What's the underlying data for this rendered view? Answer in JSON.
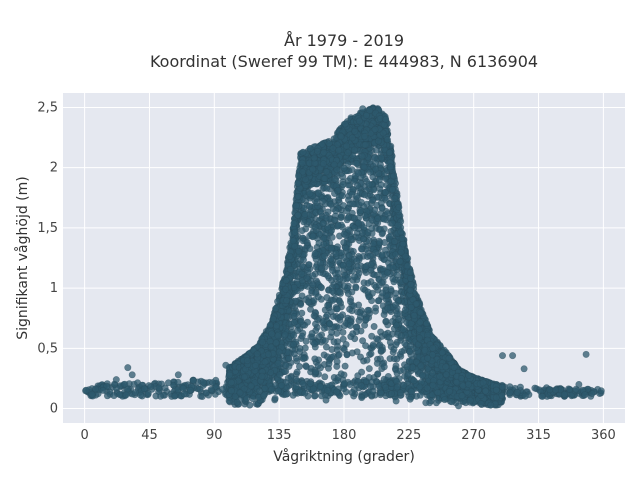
{
  "chart_data": {
    "type": "scatter",
    "title": "År 1979 - 2019",
    "subtitle": "Koordinat (Sweref 99 TM): E 444983, N 6136904",
    "xlabel": "Vågriktning (grader)",
    "ylabel": "Signifikant våghöjd (m)",
    "xlim": [
      -15,
      375
    ],
    "ylim": [
      -0.12,
      2.62
    ],
    "x_ticks": [
      0,
      45,
      90,
      135,
      180,
      225,
      270,
      315,
      360
    ],
    "x_tick_labels": [
      "0",
      "45",
      "90",
      "135",
      "180",
      "225",
      "270",
      "315",
      "360"
    ],
    "y_ticks": [
      0,
      0.5,
      1,
      1.5,
      2,
      2.5
    ],
    "y_tick_labels": [
      "0",
      "0,5",
      "1",
      "1,5",
      "2",
      "2,5"
    ],
    "grid": true,
    "marker_color": "#2e5a6e",
    "background_color": "#e5e8f0",
    "envelope": {
      "description_source": "upper boundary of point cloud (data units)",
      "x": [
        0,
        45,
        90,
        110,
        120,
        130,
        140,
        145,
        150,
        155,
        160,
        170,
        175,
        180,
        185,
        190,
        195,
        200,
        205,
        210,
        215,
        220,
        225,
        230,
        235,
        240,
        250,
        260,
        270,
        285,
        300,
        330,
        360
      ],
      "y_max": [
        0.2,
        0.22,
        0.26,
        0.42,
        0.52,
        0.72,
        1.15,
        1.55,
        2.12,
        2.15,
        2.18,
        2.22,
        2.28,
        2.38,
        2.42,
        2.45,
        2.47,
        2.5,
        2.49,
        2.4,
        1.95,
        1.5,
        1.2,
        0.95,
        0.8,
        0.62,
        0.48,
        0.32,
        0.26,
        0.2,
        0.18,
        0.17,
        0.16
      ]
    },
    "outliers": [
      {
        "x": 30,
        "y": 0.34
      },
      {
        "x": 33,
        "y": 0.28
      },
      {
        "x": 22,
        "y": 0.24
      },
      {
        "x": 65,
        "y": 0.28
      },
      {
        "x": 98,
        "y": 0.36
      },
      {
        "x": 290,
        "y": 0.44
      },
      {
        "x": 297,
        "y": 0.44
      },
      {
        "x": 305,
        "y": 0.33
      },
      {
        "x": 343,
        "y": 0.2
      },
      {
        "x": 348,
        "y": 0.45
      },
      {
        "x": 341,
        "y": 0.16
      },
      {
        "x": 193,
        "y": 2.49
      }
    ]
  }
}
